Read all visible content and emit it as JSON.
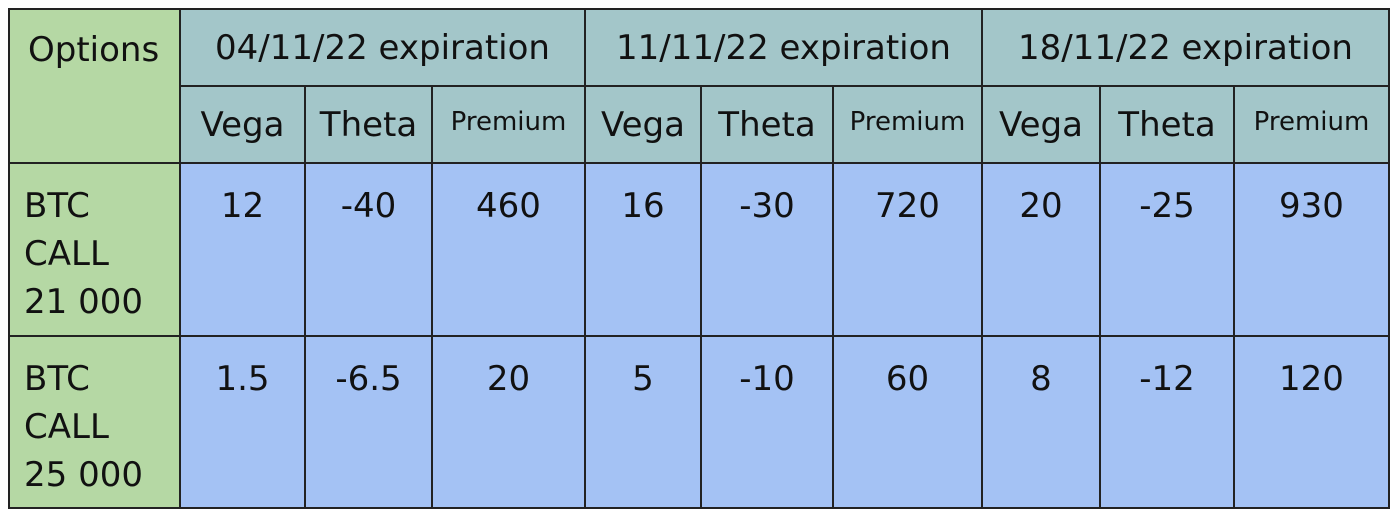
{
  "table": {
    "corner_label": "Options",
    "expirations": [
      "04/11/22 expiration",
      "11/11/22 expiration",
      "18/11/22 expiration"
    ],
    "metrics": [
      "Vega",
      "Theta",
      "Premium"
    ],
    "rows": [
      {
        "label": "BTC\nCALL\n21 000",
        "values": [
          "12",
          "-40",
          "460",
          "16",
          "-30",
          "720",
          "20",
          "-25",
          "930"
        ]
      },
      {
        "label": "BTC\nCALL\n25 000",
        "values": [
          "1.5",
          "-6.5",
          "20",
          "5",
          "-10",
          "60",
          "8",
          "-12",
          "120"
        ]
      }
    ]
  },
  "colors": {
    "label_column": "#b5d8a4",
    "header": "#a3c6c9",
    "values": "#a4c2f4",
    "border": "#222222"
  }
}
